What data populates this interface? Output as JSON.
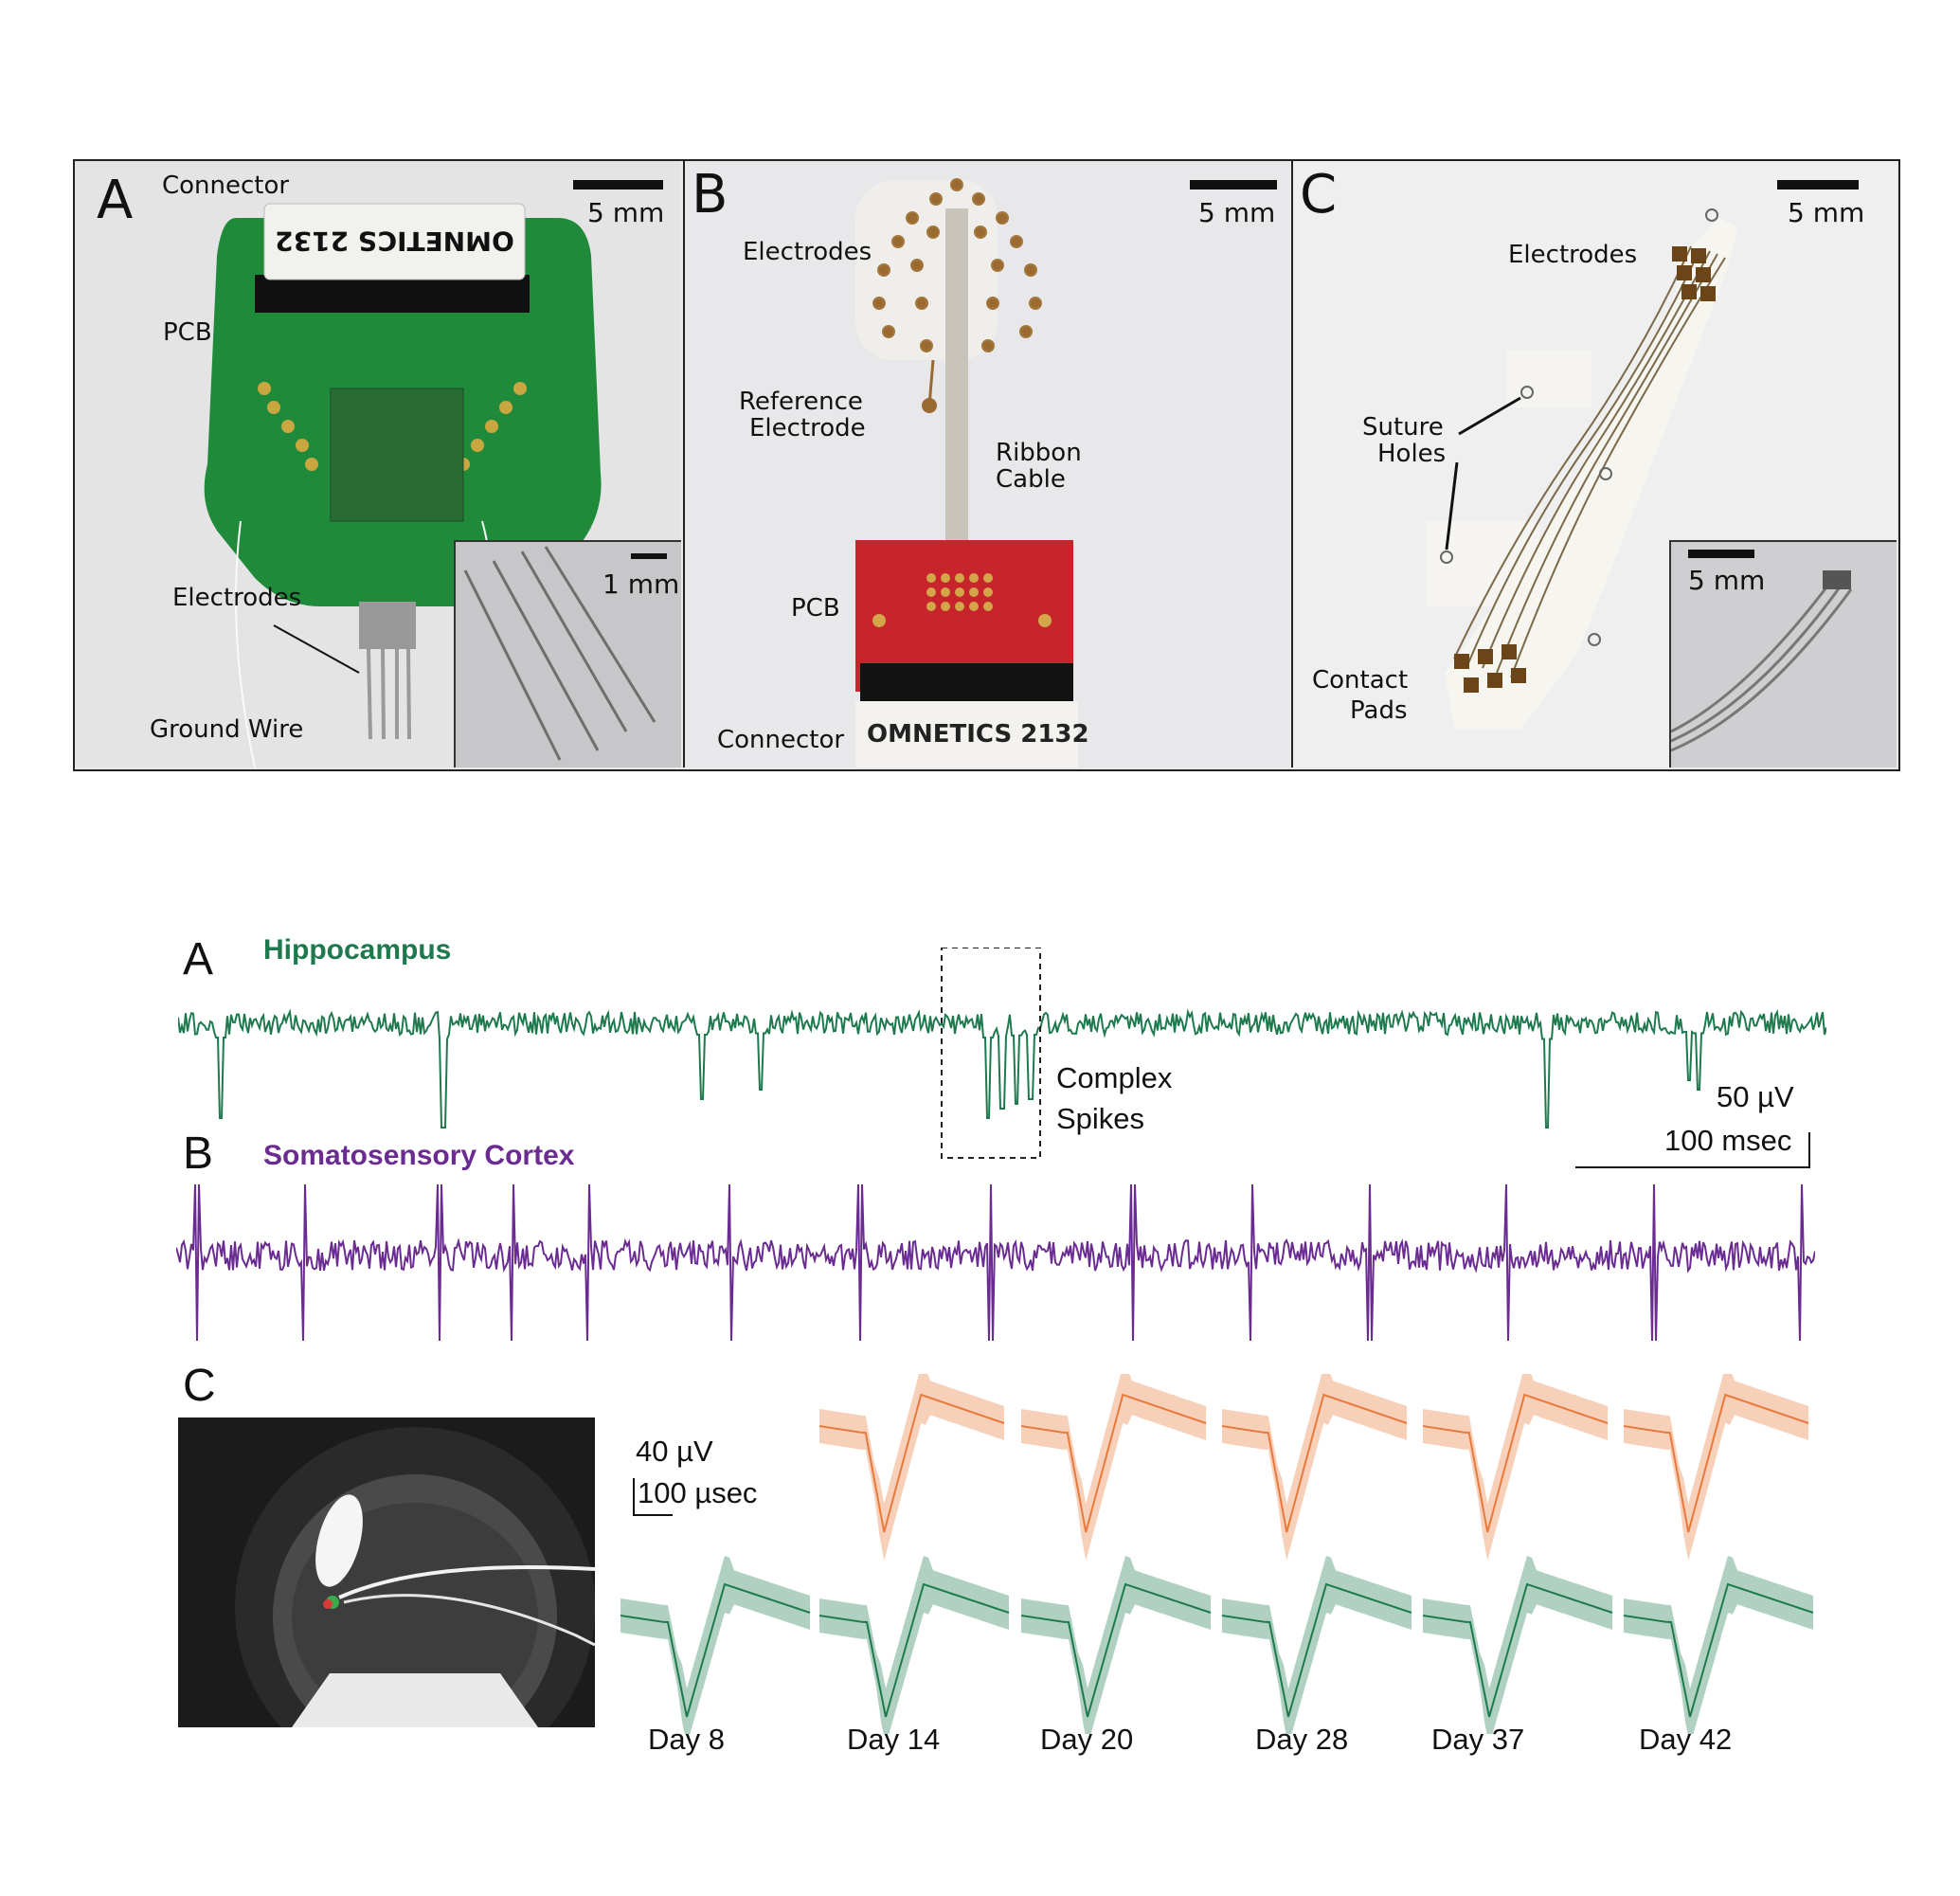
{
  "figure1": {
    "panel_a": {
      "letter": "A",
      "scale": "5 mm",
      "inset_scale": "1 mm",
      "labels": {
        "connector": "Connector",
        "pcb": "PCB",
        "electrodes": "Electrodes",
        "ground_wire": "Ground Wire"
      },
      "chip_text": "OMNETICS 2132"
    },
    "panel_b": {
      "letter": "B",
      "scale": "5 mm",
      "labels": {
        "electrodes": "Electrodes",
        "reference_1": "Reference",
        "reference_2": "Electrode",
        "ribbon_1": "Ribbon",
        "ribbon_2": "Cable",
        "pcb": "PCB",
        "connector": "Connector"
      },
      "chip_text": "OMNETICS 2132"
    },
    "panel_c": {
      "letter": "C",
      "scale": "5 mm",
      "inset_scale": "5 mm",
      "labels": {
        "electrodes": "Electrodes",
        "suture_1": "Suture",
        "suture_2": "Holes",
        "contact_1": "Contact",
        "contact_2": "Pads"
      }
    }
  },
  "figure2": {
    "panel_a": {
      "letter": "A",
      "title": "Hippocampus",
      "annotation_1": "Complex",
      "annotation_2": "Spikes"
    },
    "scalebar": {
      "voltage": "50 µV",
      "time": "100 msec"
    },
    "panel_b": {
      "letter": "B",
      "title": "Somatosensory Cortex"
    },
    "panel_c": {
      "letter": "C",
      "scale_voltage": "40 µV",
      "scale_time": "100 µsec",
      "days": [
        "Day 8",
        "Day 14",
        "Day 20",
        "Day 28",
        "Day 37",
        "Day 42"
      ]
    }
  },
  "colors": {
    "hippocampus": "#1e7a4e",
    "cortex": "#6a2c91",
    "orange": "#e8793a",
    "green": "#1e7a4e"
  }
}
